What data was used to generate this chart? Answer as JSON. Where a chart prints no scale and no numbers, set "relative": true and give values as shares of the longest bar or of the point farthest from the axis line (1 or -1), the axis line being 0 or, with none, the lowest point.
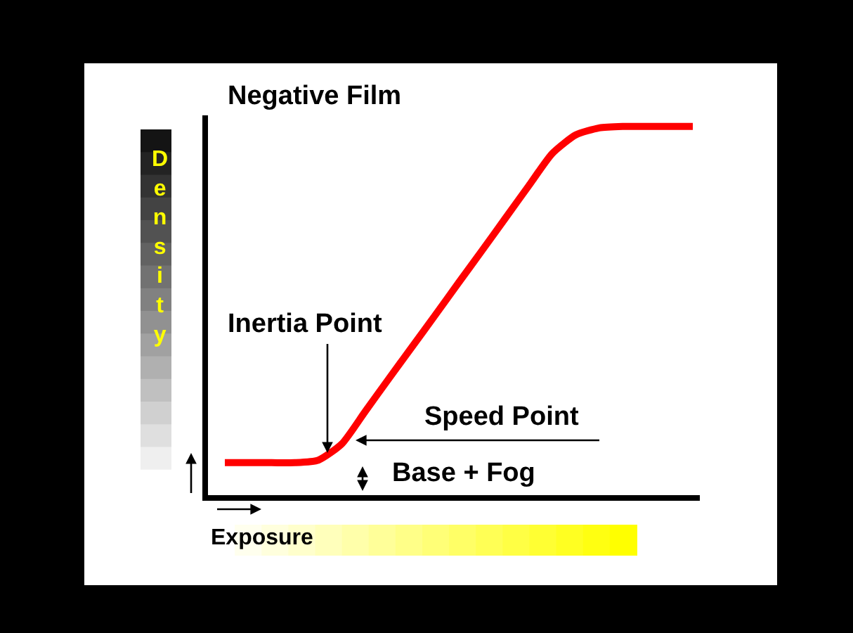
{
  "chart_data": {
    "type": "line",
    "relative": true,
    "title": "Negative Film",
    "xlabel": "Exposure",
    "ylabel": "Density",
    "marker": "none",
    "line_style": "solid",
    "categories": [
      null,
      null,
      null,
      null,
      null,
      null,
      null,
      null,
      null,
      null,
      null,
      null,
      null,
      null,
      null,
      null,
      null,
      null,
      null,
      null,
      null
    ],
    "series": [
      {
        "color": "#ff0000",
        "values": [
          0.088,
          0.088,
          0.088,
          0.088,
          0.095,
          0.139,
          0.227,
          0.315,
          0.402,
          0.489,
          0.577,
          0.664,
          0.752,
          0.84,
          0.927,
          0.977,
          0.996,
          1,
          1,
          1,
          1
        ]
      }
    ],
    "annotations": [
      "Inertia Point",
      "Speed Point",
      "Base + Fog"
    ]
  }
}
